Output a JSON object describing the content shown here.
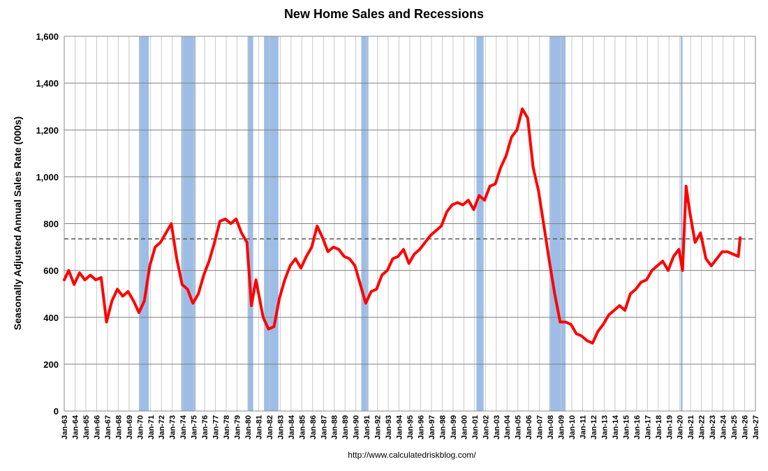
{
  "chart_data": {
    "type": "line",
    "title": "New Home Sales and Recessions",
    "xlabel": "",
    "ylabel": "Seasonally Adjusted Annual Sales Rate (000s)",
    "source": "http://www.calculatedriskblog.com/",
    "ylim": [
      0,
      1600
    ],
    "xlim": [
      "1963-01",
      "2027-01"
    ],
    "yticks": [
      "0",
      "200",
      "400",
      "600",
      "800",
      "1,000",
      "1,200",
      "1,400",
      "1,600"
    ],
    "xticks": [
      "Jan-63",
      "Jan-64",
      "Jan-65",
      "Jan-66",
      "Jan-67",
      "Jan-68",
      "Jan-69",
      "Jan-70",
      "Jan-71",
      "Jan-72",
      "Jan-73",
      "Jan-74",
      "Jan-75",
      "Jan-76",
      "Jan-77",
      "Jan-78",
      "Jan-79",
      "Jan-80",
      "Jan-81",
      "Jan-82",
      "Jan-83",
      "Jan-84",
      "Jan-85",
      "Jan-86",
      "Jan-87",
      "Jan-88",
      "Jan-89",
      "Jan-90",
      "Jan-91",
      "Jan-92",
      "Jan-93",
      "Jan-94",
      "Jan-95",
      "Jan-96",
      "Jan-97",
      "Jan-98",
      "Jan-99",
      "Jan-00",
      "Jan-01",
      "Jan-02",
      "Jan-03",
      "Jan-04",
      "Jan-05",
      "Jan-06",
      "Jan-07",
      "Jan-08",
      "Jan-09",
      "Jan-10",
      "Jan-11",
      "Jan-12",
      "Jan-13",
      "Jan-14",
      "Jan-15",
      "Jan-16",
      "Jan-17",
      "Jan-18",
      "Jan-19",
      "Jan-20",
      "Jan-21",
      "Jan-22",
      "Jan-23",
      "Jan-24",
      "Jan-25",
      "Jan-26",
      "Jan-27"
    ],
    "grid": true,
    "reference_line": {
      "y": 735,
      "style": "dashed"
    },
    "recessions": [
      [
        "1969-12",
        "1970-11"
      ],
      [
        "1973-11",
        "1975-03"
      ],
      [
        "1980-01",
        "1980-07"
      ],
      [
        "1981-07",
        "1982-11"
      ],
      [
        "1990-07",
        "1991-03"
      ],
      [
        "2001-03",
        "2001-11"
      ],
      [
        "2007-12",
        "2009-06"
      ],
      [
        "2020-02",
        "2020-04"
      ]
    ],
    "series": [
      {
        "x": [
          "1963-01",
          "1963-06",
          "1963-12",
          "1964-06",
          "1964-12",
          "1965-06",
          "1965-12",
          "1966-06",
          "1966-12",
          "1967-06",
          "1967-12",
          "1968-06",
          "1968-12",
          "1969-06",
          "1969-12",
          "1970-06",
          "1970-12",
          "1971-06",
          "1971-12",
          "1972-06",
          "1972-12",
          "1973-06",
          "1973-12",
          "1974-06",
          "1974-12",
          "1975-06",
          "1975-12",
          "1976-06",
          "1976-12",
          "1977-06",
          "1977-12",
          "1978-06",
          "1978-12",
          "1979-06",
          "1979-12",
          "1980-05",
          "1980-10",
          "1981-06",
          "1981-12",
          "1982-06",
          "1982-12",
          "1983-06",
          "1983-12",
          "1984-06",
          "1984-12",
          "1985-06",
          "1985-12",
          "1986-06",
          "1986-12",
          "1987-06",
          "1987-12",
          "1988-06",
          "1988-12",
          "1989-06",
          "1989-12",
          "1990-06",
          "1990-12",
          "1991-06",
          "1991-12",
          "1992-06",
          "1992-12",
          "1993-06",
          "1993-12",
          "1994-06",
          "1994-12",
          "1995-06",
          "1995-12",
          "1996-06",
          "1996-12",
          "1997-06",
          "1997-12",
          "1998-06",
          "1998-12",
          "1999-06",
          "1999-12",
          "2000-06",
          "2000-12",
          "2001-06",
          "2001-12",
          "2002-06",
          "2002-12",
          "2003-06",
          "2003-12",
          "2004-06",
          "2004-12",
          "2005-06",
          "2005-12",
          "2006-06",
          "2006-12",
          "2007-06",
          "2007-12",
          "2008-06",
          "2008-12",
          "2009-06",
          "2009-12",
          "2010-06",
          "2010-12",
          "2011-06",
          "2011-12",
          "2012-06",
          "2012-12",
          "2013-06",
          "2013-12",
          "2014-06",
          "2014-12",
          "2015-06",
          "2015-12",
          "2016-06",
          "2016-12",
          "2017-06",
          "2017-12",
          "2018-06",
          "2018-12",
          "2019-06",
          "2019-12",
          "2020-04",
          "2020-08",
          "2020-12",
          "2021-06",
          "2021-12",
          "2022-06",
          "2022-12",
          "2023-06",
          "2023-12",
          "2024-06",
          "2024-12",
          "2025-06",
          "2025-08"
        ],
        "values": [
          560,
          600,
          540,
          590,
          560,
          580,
          560,
          570,
          380,
          470,
          520,
          490,
          510,
          470,
          420,
          470,
          620,
          700,
          720,
          760,
          800,
          650,
          540,
          520,
          460,
          500,
          580,
          640,
          720,
          810,
          820,
          800,
          820,
          760,
          720,
          450,
          560,
          400,
          350,
          360,
          480,
          560,
          620,
          650,
          610,
          660,
          700,
          790,
          740,
          680,
          700,
          690,
          660,
          650,
          620,
          540,
          460,
          510,
          520,
          580,
          600,
          650,
          660,
          690,
          630,
          670,
          690,
          720,
          750,
          770,
          790,
          850,
          880,
          890,
          880,
          900,
          860,
          920,
          900,
          960,
          970,
          1040,
          1090,
          1170,
          1200,
          1290,
          1250,
          1040,
          940,
          790,
          640,
          500,
          380,
          380,
          370,
          330,
          320,
          300,
          290,
          340,
          370,
          410,
          430,
          450,
          430,
          500,
          520,
          550,
          560,
          600,
          620,
          640,
          600,
          660,
          690,
          600,
          960,
          850,
          720,
          760,
          650,
          620,
          650,
          680,
          680,
          670,
          660,
          740
        ]
      }
    ]
  }
}
